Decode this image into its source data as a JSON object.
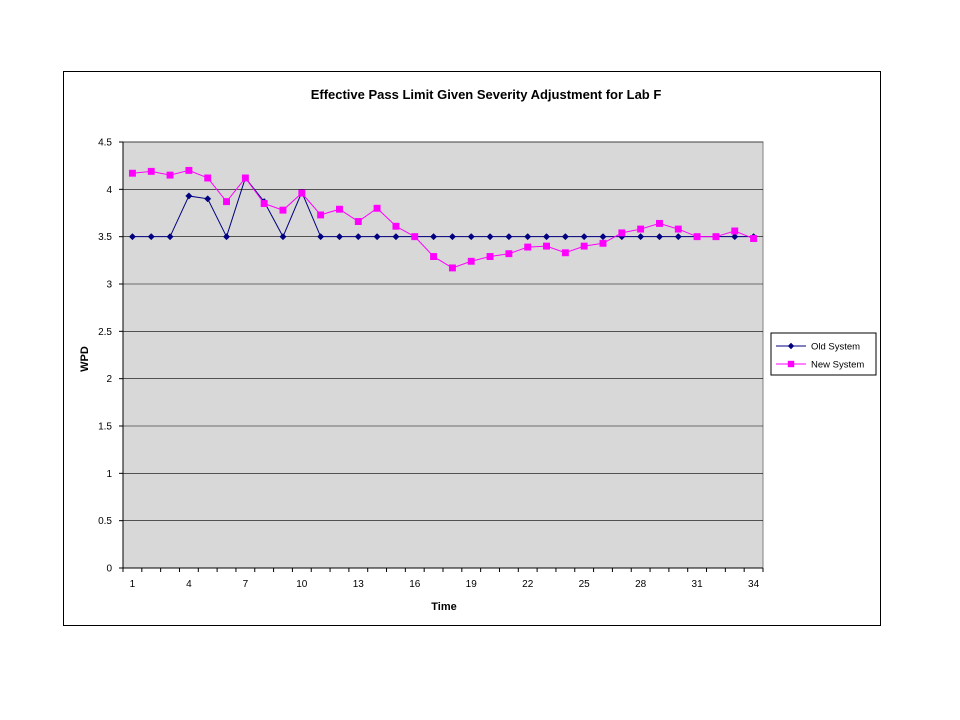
{
  "chart_data": {
    "type": "line",
    "title": "Effective Pass Limit Given Severity Adjustment for Lab F",
    "xlabel": "Time",
    "ylabel": "WPD",
    "ylim": [
      0,
      4.5
    ],
    "yticks": [
      0,
      0.5,
      1,
      1.5,
      2,
      2.5,
      3,
      3.5,
      4,
      4.5
    ],
    "ytick_labels": [
      "0",
      "0.5",
      "1",
      "1.5",
      "2",
      "2.5",
      "3",
      "3.5",
      "4",
      "4.5"
    ],
    "x": [
      1,
      2,
      3,
      4,
      5,
      6,
      7,
      8,
      9,
      10,
      11,
      12,
      13,
      14,
      15,
      16,
      17,
      18,
      19,
      20,
      21,
      22,
      23,
      24,
      25,
      26,
      27,
      28,
      29,
      30,
      31,
      32,
      33,
      34
    ],
    "xtick_labels": [
      "1",
      "4",
      "7",
      "10",
      "13",
      "16",
      "19",
      "22",
      "25",
      "28",
      "31",
      "34"
    ],
    "grid": true,
    "legend_position": "right",
    "plot_background": "#d8d8d8",
    "series": [
      {
        "name": "Old System",
        "color": "#000080",
        "marker": "diamond",
        "values": [
          3.5,
          3.5,
          3.5,
          3.93,
          3.9,
          3.5,
          4.12,
          3.87,
          3.5,
          3.97,
          3.5,
          3.5,
          3.5,
          3.5,
          3.5,
          3.5,
          3.5,
          3.5,
          3.5,
          3.5,
          3.5,
          3.5,
          3.5,
          3.5,
          3.5,
          3.5,
          3.5,
          3.5,
          3.5,
          3.5,
          3.5,
          3.5,
          3.5,
          3.5
        ]
      },
      {
        "name": "New System",
        "color": "#ff00ff",
        "marker": "square",
        "values": [
          4.17,
          4.19,
          4.15,
          4.2,
          4.12,
          3.87,
          4.12,
          3.85,
          3.78,
          3.96,
          3.73,
          3.79,
          3.66,
          3.8,
          3.61,
          3.5,
          3.29,
          3.17,
          3.24,
          3.29,
          3.32,
          3.39,
          3.4,
          3.33,
          3.4,
          3.43,
          3.54,
          3.58,
          3.64,
          3.58,
          3.5,
          3.5,
          3.56,
          3.48
        ]
      }
    ]
  }
}
